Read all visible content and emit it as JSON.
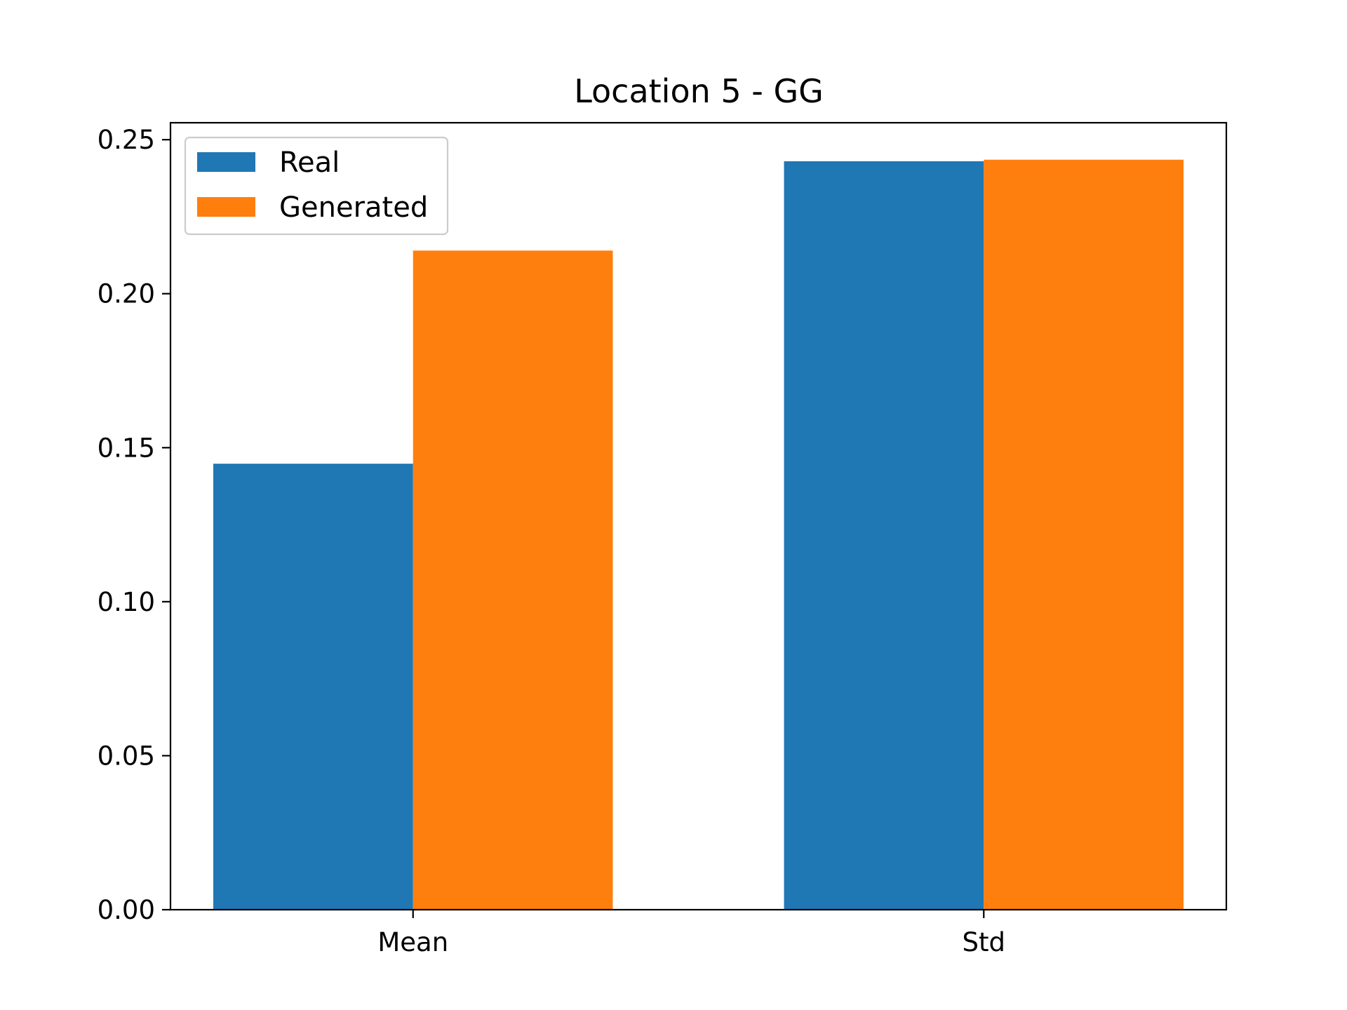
{
  "chart_data": {
    "type": "bar",
    "title": "Location 5 - GG",
    "xlabel": "",
    "ylabel": "",
    "categories": [
      "Mean",
      "Std"
    ],
    "series": [
      {
        "name": "Real",
        "values": [
          0.1448,
          0.243
        ]
      },
      {
        "name": "Generated",
        "values": [
          0.214,
          0.2435
        ]
      }
    ],
    "ylim": [
      0,
      0.2555
    ],
    "yticks": [
      0.0,
      0.05,
      0.1,
      0.15,
      0.2,
      0.25
    ],
    "ytick_labels": [
      "0.00",
      "0.05",
      "0.10",
      "0.15",
      "0.20",
      "0.25"
    ],
    "grid": false,
    "legend_position": "top-left",
    "colors": {
      "Real": "#1f77b4",
      "Generated": "#ff7f0e"
    }
  }
}
